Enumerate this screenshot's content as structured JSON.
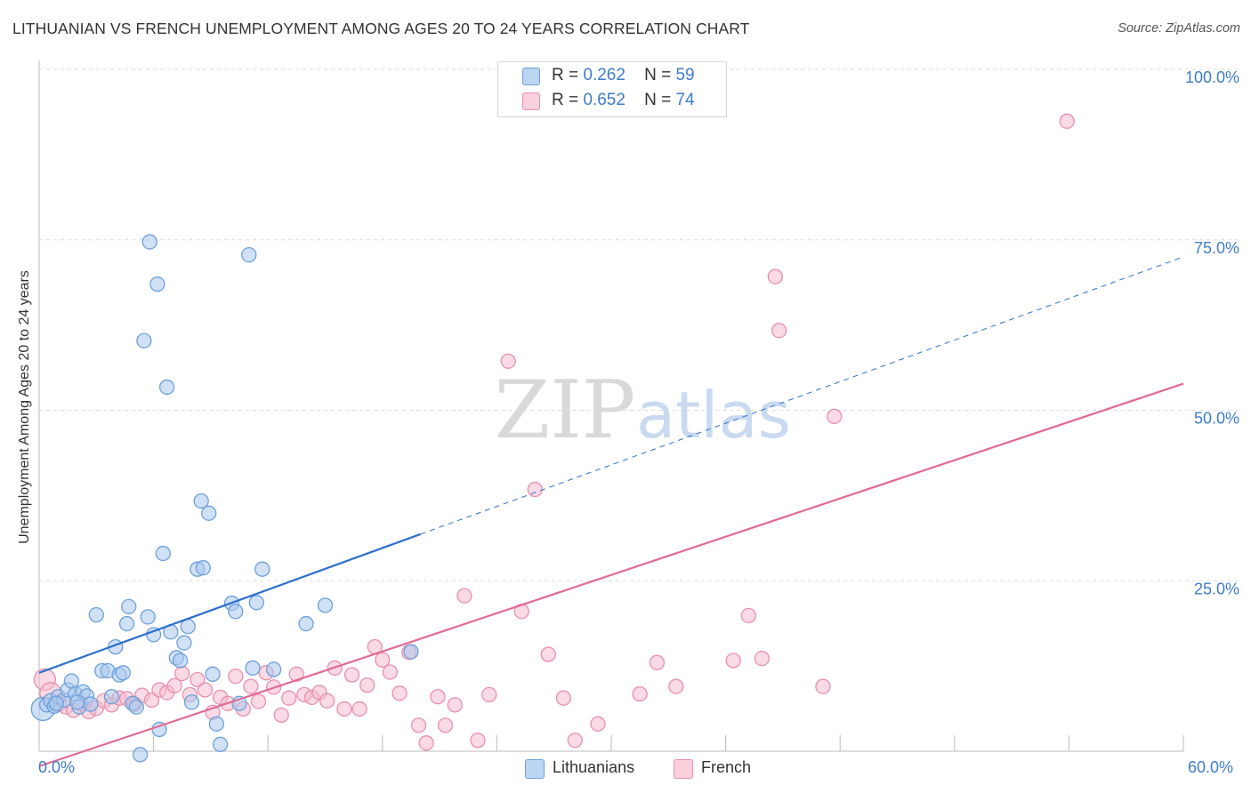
{
  "header": {
    "title": "LITHUANIAN VS FRENCH UNEMPLOYMENT AMONG AGES 20 TO 24 YEARS CORRELATION CHART",
    "source": "Source: ZipAtlas.com"
  },
  "watermark": {
    "zip": "ZIP",
    "atlas": "atlas"
  },
  "legend": {
    "items": [
      {
        "r_label": "R =",
        "r_value": "0.262",
        "n_label": "N =",
        "n_value": "59"
      },
      {
        "r_label": "R =",
        "r_value": "0.652",
        "n_label": "N =",
        "n_value": "74"
      }
    ]
  },
  "bottom_legend": {
    "lithuanians": "Lithuanians",
    "french": "French"
  },
  "colors": {
    "blue_fill": "#a9c8ef",
    "blue_stroke": "#6d9fd9",
    "blue_line": "#2d6fcc",
    "pink_fill": "#f6bccd",
    "pink_stroke": "#e890ab",
    "pink_line": "#e06a93",
    "tick_text": "#3d7cc9",
    "grid": "#dddddd"
  },
  "chart_data": {
    "type": "scatter",
    "title": "LITHUANIAN VS FRENCH UNEMPLOYMENT AMONG AGES 20 TO 24 YEARS CORRELATION CHART",
    "xlabel": "",
    "ylabel": "Unemployment Among Ages 20 to 24 years",
    "xlim": [
      0,
      60
    ],
    "ylim": [
      0,
      100
    ],
    "x_tick_labels": [
      "0.0%",
      "60.0%"
    ],
    "y_ticks": [
      25,
      50,
      75,
      100
    ],
    "y_tick_labels": [
      "25.0%",
      "50.0%",
      "75.0%",
      "100.0%"
    ],
    "grid": true,
    "legend_position": "top-center",
    "series": [
      {
        "name": "Lithuanians",
        "r": 0.262,
        "n": 59,
        "trend": {
          "x_start": 0,
          "y_start": 11.5,
          "x_solid_end": 20,
          "x_end": 60,
          "y_end": 72.5
        },
        "points": [
          [
            0.2,
            6.2,
            26
          ],
          [
            0.4,
            6.8,
            16
          ],
          [
            0.6,
            7.4,
            16
          ],
          [
            0.8,
            6.6,
            16
          ],
          [
            1.0,
            8.0,
            16
          ],
          [
            1.3,
            7.5,
            16
          ],
          [
            1.5,
            9.0,
            16
          ],
          [
            1.7,
            10.3,
            16
          ],
          [
            1.9,
            8.4,
            16
          ],
          [
            2.1,
            6.5,
            16
          ],
          [
            2.3,
            8.7,
            16
          ],
          [
            2.5,
            8.1,
            16
          ],
          [
            2.7,
            6.9,
            16
          ],
          [
            3.0,
            20.0,
            16
          ],
          [
            3.3,
            11.8,
            16
          ],
          [
            3.6,
            11.8,
            16
          ],
          [
            3.8,
            8.0,
            16
          ],
          [
            4.0,
            15.3,
            16
          ],
          [
            4.2,
            11.2,
            16
          ],
          [
            4.4,
            11.5,
            16
          ],
          [
            4.6,
            18.7,
            16
          ],
          [
            4.7,
            21.2,
            16
          ],
          [
            4.9,
            7.0,
            16
          ],
          [
            5.1,
            6.5,
            16
          ],
          [
            5.3,
            -0.5,
            16
          ],
          [
            5.5,
            60.2,
            16
          ],
          [
            5.7,
            19.7,
            16
          ],
          [
            5.8,
            74.7,
            16
          ],
          [
            6.0,
            17.1,
            16
          ],
          [
            6.2,
            68.5,
            16
          ],
          [
            6.3,
            3.2,
            16
          ],
          [
            6.5,
            29.0,
            16
          ],
          [
            6.7,
            53.4,
            16
          ],
          [
            6.9,
            17.5,
            16
          ],
          [
            7.2,
            13.7,
            16
          ],
          [
            7.4,
            13.3,
            16
          ],
          [
            7.6,
            15.9,
            16
          ],
          [
            7.8,
            18.3,
            16
          ],
          [
            8.0,
            7.2,
            16
          ],
          [
            8.3,
            26.7,
            16
          ],
          [
            8.5,
            36.7,
            16
          ],
          [
            8.6,
            26.9,
            16
          ],
          [
            8.9,
            34.9,
            16
          ],
          [
            9.1,
            11.3,
            16
          ],
          [
            9.3,
            4.0,
            16
          ],
          [
            9.5,
            1.0,
            16
          ],
          [
            10.1,
            21.7,
            16
          ],
          [
            10.3,
            20.5,
            16
          ],
          [
            10.5,
            7.0,
            16
          ],
          [
            11.0,
            72.8,
            16
          ],
          [
            11.2,
            12.2,
            16
          ],
          [
            11.4,
            21.8,
            16
          ],
          [
            11.7,
            26.7,
            16
          ],
          [
            12.3,
            12.0,
            16
          ],
          [
            14.0,
            18.7,
            16
          ],
          [
            15.0,
            21.4,
            16
          ],
          [
            19.5,
            14.6,
            16
          ],
          [
            0.9,
            7.0,
            16
          ],
          [
            2.0,
            7.2,
            16
          ]
        ]
      },
      {
        "name": "French",
        "r": 0.652,
        "n": 74,
        "trend": {
          "x_start": 0,
          "y_start": -2.2,
          "x_end": 60,
          "y_end": 53.9
        },
        "points": [
          [
            0.3,
            10.5,
            24
          ],
          [
            0.6,
            8.5,
            24
          ],
          [
            1.0,
            7.0,
            18
          ],
          [
            1.4,
            6.5,
            16
          ],
          [
            1.8,
            6.0,
            16
          ],
          [
            2.2,
            7.0,
            16
          ],
          [
            2.6,
            5.8,
            16
          ],
          [
            3.0,
            6.3,
            16
          ],
          [
            3.4,
            7.4,
            16
          ],
          [
            3.8,
            6.8,
            16
          ],
          [
            4.2,
            7.8,
            16
          ],
          [
            4.6,
            7.7,
            16
          ],
          [
            5.0,
            6.9,
            16
          ],
          [
            5.4,
            8.2,
            16
          ],
          [
            5.9,
            7.5,
            16
          ],
          [
            6.3,
            9.0,
            16
          ],
          [
            6.7,
            8.6,
            16
          ],
          [
            7.1,
            9.6,
            16
          ],
          [
            7.5,
            11.4,
            16
          ],
          [
            7.9,
            8.3,
            16
          ],
          [
            8.3,
            10.5,
            16
          ],
          [
            8.7,
            9.0,
            16
          ],
          [
            9.1,
            5.7,
            16
          ],
          [
            9.5,
            7.9,
            16
          ],
          [
            9.9,
            7.0,
            16
          ],
          [
            10.3,
            11.0,
            16
          ],
          [
            10.7,
            6.2,
            16
          ],
          [
            11.1,
            9.5,
            16
          ],
          [
            11.5,
            7.3,
            16
          ],
          [
            11.9,
            11.5,
            16
          ],
          [
            12.3,
            9.4,
            16
          ],
          [
            12.7,
            5.3,
            16
          ],
          [
            13.1,
            7.8,
            16
          ],
          [
            13.5,
            11.3,
            16
          ],
          [
            13.9,
            8.3,
            16
          ],
          [
            14.3,
            7.9,
            16
          ],
          [
            14.7,
            8.6,
            16
          ],
          [
            15.1,
            7.4,
            16
          ],
          [
            15.5,
            12.2,
            16
          ],
          [
            16.0,
            6.2,
            16
          ],
          [
            16.4,
            11.2,
            16
          ],
          [
            16.8,
            6.2,
            16
          ],
          [
            17.2,
            9.7,
            16
          ],
          [
            17.6,
            15.3,
            16
          ],
          [
            18.0,
            13.4,
            16
          ],
          [
            18.4,
            11.6,
            16
          ],
          [
            18.9,
            8.5,
            16
          ],
          [
            19.4,
            14.5,
            16
          ],
          [
            19.9,
            3.8,
            16
          ],
          [
            20.3,
            1.2,
            16
          ],
          [
            20.9,
            8.0,
            16
          ],
          [
            21.3,
            3.8,
            16
          ],
          [
            21.8,
            6.8,
            16
          ],
          [
            22.3,
            22.8,
            16
          ],
          [
            23.0,
            1.6,
            16
          ],
          [
            23.6,
            8.3,
            16
          ],
          [
            24.6,
            57.2,
            16
          ],
          [
            25.3,
            20.5,
            16
          ],
          [
            26.0,
            38.4,
            16
          ],
          [
            26.7,
            14.2,
            16
          ],
          [
            27.5,
            7.8,
            16
          ],
          [
            28.1,
            1.6,
            16
          ],
          [
            29.3,
            4.0,
            16
          ],
          [
            31.5,
            8.4,
            16
          ],
          [
            32.4,
            13.0,
            16
          ],
          [
            33.4,
            9.5,
            16
          ],
          [
            36.4,
            13.3,
            16
          ],
          [
            37.2,
            19.9,
            16
          ],
          [
            37.9,
            13.6,
            16
          ],
          [
            38.6,
            69.6,
            16
          ],
          [
            38.8,
            61.7,
            16
          ],
          [
            41.1,
            9.5,
            16
          ],
          [
            41.7,
            49.1,
            16
          ],
          [
            53.9,
            92.4,
            16
          ]
        ]
      }
    ]
  }
}
